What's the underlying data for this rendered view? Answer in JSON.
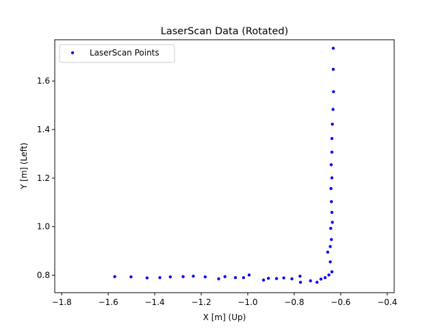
{
  "chart_data": {
    "type": "scatter",
    "title": "LaserScan Data (Rotated)",
    "xlabel": "X [m] (Up)",
    "ylabel": "Y [m] (Left)",
    "xlim": [
      -1.83,
      -0.37
    ],
    "ylim": [
      0.728,
      1.77
    ],
    "xticks": [
      -1.8,
      -1.6,
      -1.4,
      -1.2,
      -1.0,
      -0.8,
      -0.6,
      -0.4
    ],
    "xtick_labels": [
      "−1.8",
      "−1.6",
      "−1.4",
      "−1.2",
      "−1.0",
      "−0.8",
      "−0.6",
      "−0.4"
    ],
    "yticks": [
      0.8,
      1.0,
      1.2,
      1.4,
      1.6
    ],
    "ytick_labels": [
      "0.8",
      "1.0",
      "1.2",
      "1.4",
      "1.6"
    ],
    "grid": false,
    "legend_position": "top-left",
    "series": [
      {
        "name": "LaserScan Points",
        "color": "#0000ff",
        "points": [
          [
            -1.572,
            0.794
          ],
          [
            -1.502,
            0.793
          ],
          [
            -1.433,
            0.789
          ],
          [
            -1.378,
            0.79
          ],
          [
            -1.333,
            0.793
          ],
          [
            -1.278,
            0.794
          ],
          [
            -1.234,
            0.796
          ],
          [
            -1.183,
            0.793
          ],
          [
            -1.125,
            0.785
          ],
          [
            -1.098,
            0.794
          ],
          [
            -1.053,
            0.79
          ],
          [
            -1.018,
            0.79
          ],
          [
            -0.994,
            0.801
          ],
          [
            -0.932,
            0.78
          ],
          [
            -0.911,
            0.787
          ],
          [
            -0.876,
            0.786
          ],
          [
            -0.845,
            0.789
          ],
          [
            -0.81,
            0.785
          ],
          [
            -0.775,
            0.796
          ],
          [
            -0.773,
            0.771
          ],
          [
            -0.73,
            0.777
          ],
          [
            -0.702,
            0.771
          ],
          [
            -0.685,
            0.784
          ],
          [
            -0.667,
            0.79
          ],
          [
            -0.651,
            0.801
          ],
          [
            -0.638,
            0.814
          ],
          [
            -0.645,
            0.855
          ],
          [
            -0.656,
            0.895
          ],
          [
            -0.645,
            0.918
          ],
          [
            -0.64,
            0.947
          ],
          [
            -0.643,
            0.993
          ],
          [
            -0.636,
            1.018
          ],
          [
            -0.638,
            1.059
          ],
          [
            -0.64,
            1.103
          ],
          [
            -0.642,
            1.157
          ],
          [
            -0.638,
            1.201
          ],
          [
            -0.641,
            1.255
          ],
          [
            -0.638,
            1.307
          ],
          [
            -0.638,
            1.363
          ],
          [
            -0.636,
            1.422
          ],
          [
            -0.633,
            1.483
          ],
          [
            -0.631,
            1.556
          ],
          [
            -0.632,
            1.648
          ],
          [
            -0.632,
            1.735
          ]
        ]
      }
    ]
  }
}
